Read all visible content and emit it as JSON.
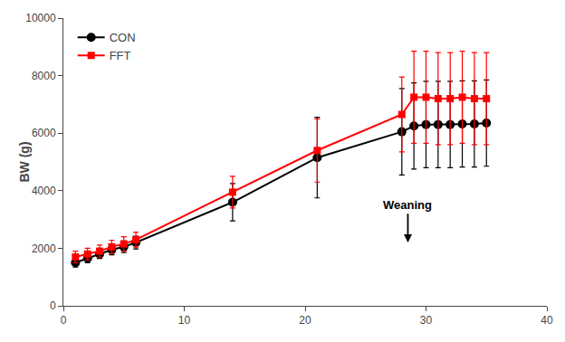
{
  "chart_data": {
    "type": "line",
    "x": [
      1,
      2,
      3,
      4,
      5,
      6,
      14,
      21,
      28,
      29,
      30,
      31,
      32,
      33,
      34,
      35
    ],
    "series": [
      {
        "name": "CON",
        "color": "#000000",
        "marker": "circle",
        "line_style": "solid",
        "values": [
          1500,
          1650,
          1800,
          1950,
          2050,
          2200,
          3600,
          5150,
          6050,
          6250,
          6300,
          6300,
          6300,
          6320,
          6320,
          6350
        ],
        "error": [
          150,
          150,
          150,
          180,
          200,
          220,
          650,
          1400,
          1500,
          1500,
          1500,
          1500,
          1500,
          1500,
          1500,
          1500
        ]
      },
      {
        "name": "FFT",
        "color": "#ff0000",
        "marker": "square",
        "line_style": "solid",
        "values": [
          1700,
          1800,
          1900,
          2050,
          2150,
          2300,
          3950,
          5400,
          6650,
          7250,
          7250,
          7200,
          7200,
          7250,
          7200,
          7200
        ],
        "error": [
          200,
          200,
          210,
          230,
          250,
          260,
          550,
          1100,
          1300,
          1600,
          1600,
          1600,
          1600,
          1600,
          1600,
          1600
        ]
      }
    ],
    "ylabel": "BW (g)",
    "xlim": [
      0,
      40
    ],
    "ylim": [
      0,
      10000
    ],
    "xticks": [
      0,
      10,
      20,
      30,
      40
    ],
    "yticks": [
      0,
      2000,
      4000,
      6000,
      8000,
      10000
    ],
    "grid": false,
    "legend": "upper left",
    "annotations": [
      {
        "text": "Weaning",
        "x": 28.5,
        "y": 3200,
        "arrow_x": 28.5,
        "arrow_y": 2200
      }
    ]
  }
}
